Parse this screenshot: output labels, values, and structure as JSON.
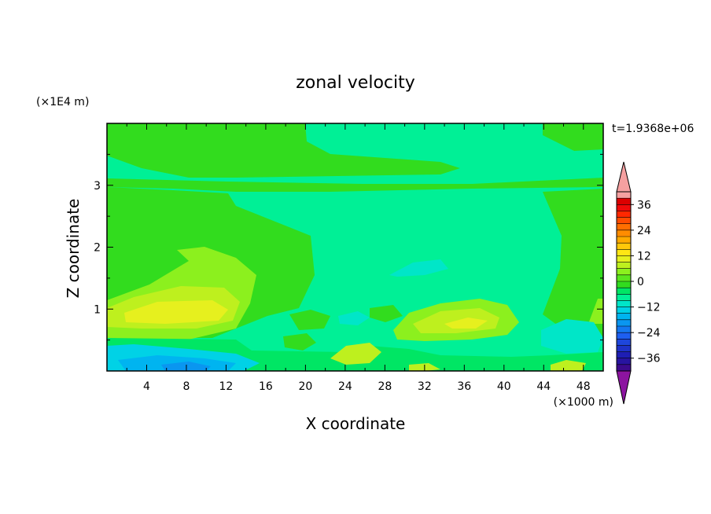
{
  "chart_data": {
    "type": "heatmap",
    "title": "zonal velocity",
    "xlabel": "X coordinate",
    "ylabel": "Z coordinate",
    "x_unit_label": "(×1000 m)",
    "y_unit_label": "(×1E4 m)",
    "time_label": "t=1.9368e+06",
    "xlim": [
      0,
      50
    ],
    "ylim": [
      0,
      4
    ],
    "x_ticks": [
      4,
      8,
      12,
      16,
      20,
      24,
      28,
      32,
      36,
      40,
      44,
      48
    ],
    "y_ticks": [
      1,
      2,
      3
    ],
    "colorbar": {
      "levels": [
        -42,
        -39,
        -36,
        -33,
        -30,
        -27,
        -24,
        -21,
        -18,
        -15,
        -12,
        -9,
        -6,
        -3,
        0,
        3,
        6,
        9,
        12,
        15,
        18,
        21,
        24,
        27,
        30,
        33,
        36,
        39,
        42
      ],
      "tick_labels": [
        "36",
        "24",
        "12",
        "0",
        "−12",
        "−24",
        "−36"
      ],
      "tick_values": [
        36,
        24,
        12,
        0,
        -12,
        -24,
        -36
      ],
      "colors": [
        "#3c0a8c",
        "#2814a0",
        "#1e1eb4",
        "#1e32c8",
        "#1e46dc",
        "#1e5ff0",
        "#1478f0",
        "#0a96f0",
        "#00b4f0",
        "#00d2e6",
        "#00e6c8",
        "#00f096",
        "#00e664",
        "#32dc1e",
        "#5ae61e",
        "#8cf01e",
        "#bef01e",
        "#e6f01e",
        "#ffe614",
        "#ffc80a",
        "#ffaa00",
        "#ff8c00",
        "#ff6e00",
        "#ff4b00",
        "#ff2800",
        "#f00a0a",
        "#dc0000",
        "#f5a0a0"
      ],
      "under_color": "#8c14a0",
      "over_color": "#f5a0a0"
    },
    "regions": [
      {
        "name": "background",
        "value": -3
      },
      {
        "name": "upper-band-left",
        "value": 0,
        "x": [
          0,
          25
        ],
        "z": [
          2.9,
          4.0
        ]
      },
      {
        "name": "upper-band-right",
        "value": 0,
        "x": [
          44,
          50
        ],
        "z": [
          3.0,
          4.0
        ]
      },
      {
        "name": "left-lobe",
        "value": 0,
        "x": [
          0,
          20
        ],
        "z": [
          0.3,
          3.0
        ]
      },
      {
        "name": "right-lobe",
        "value": 0,
        "x": [
          44,
          50
        ],
        "z": [
          0.3,
          3.0
        ]
      },
      {
        "name": "left-jet-outer",
        "value": 3,
        "x": [
          0,
          15
        ],
        "z": [
          0.5,
          2.0
        ]
      },
      {
        "name": "left-jet-core",
        "value": 6,
        "x": [
          2,
          13
        ],
        "z": [
          0.6,
          1.3
        ]
      },
      {
        "name": "left-jet-max",
        "value": 9,
        "x": [
          3,
          12
        ],
        "z": [
          0.75,
          1.15
        ]
      },
      {
        "name": "mid-jet-outer",
        "value": 3,
        "x": [
          29,
          41
        ],
        "z": [
          0.45,
          1.15
        ]
      },
      {
        "name": "mid-jet-core",
        "value": 6,
        "x": [
          31,
          39
        ],
        "z": [
          0.6,
          1.0
        ]
      },
      {
        "name": "mid-jet-max",
        "value": 9,
        "x": [
          33,
          37
        ],
        "z": [
          0.7,
          0.85
        ]
      },
      {
        "name": "surface-negative",
        "value": -9,
        "x": [
          0,
          15
        ],
        "z": [
          0,
          0.35
        ]
      },
      {
        "name": "surface-min",
        "value": -15,
        "x": [
          5,
          13
        ],
        "z": [
          0,
          0.1
        ]
      },
      {
        "name": "aloft-negative",
        "value": -6,
        "x": [
          28,
          35
        ],
        "z": [
          1.5,
          1.8
        ]
      }
    ]
  }
}
